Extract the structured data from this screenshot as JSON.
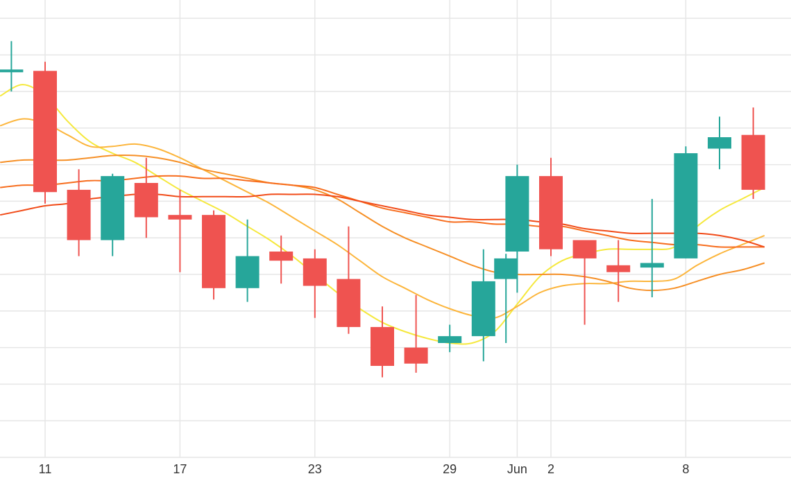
{
  "chart_data": {
    "type": "candlestick",
    "grid": true,
    "legend": "none",
    "x_axis": {
      "unit": "day",
      "tick_labels": [
        {
          "day": 11,
          "label": "11"
        },
        {
          "day": 17,
          "label": "17"
        },
        {
          "day": 23,
          "label": "23"
        },
        {
          "day": 29,
          "label": "29"
        },
        {
          "day": 32,
          "label": "Jun"
        },
        {
          "day": 33.5,
          "label": "2"
        },
        {
          "day": 39.5,
          "label": "8"
        }
      ],
      "range": [
        9,
        44
      ]
    },
    "y_axis": {
      "range": [
        0,
        100
      ],
      "gridlines": [
        0,
        8,
        16,
        24,
        32,
        40,
        48,
        56,
        64,
        72,
        80,
        88,
        96
      ]
    },
    "candles": [
      {
        "day": 9.5,
        "open": 84.2,
        "high": 91.0,
        "low": 80.0,
        "close": 84.8
      },
      {
        "day": 11,
        "open": 84.5,
        "high": 86.5,
        "low": 55.5,
        "close": 58.0
      },
      {
        "day": 12.5,
        "open": 58.5,
        "high": 63.0,
        "low": 44.0,
        "close": 47.5
      },
      {
        "day": 14,
        "open": 47.5,
        "high": 62.0,
        "low": 44.0,
        "close": 61.5
      },
      {
        "day": 15.5,
        "open": 60.0,
        "high": 65.5,
        "low": 48.0,
        "close": 52.5
      },
      {
        "day": 17,
        "open": 53.0,
        "high": 58.5,
        "low": 40.5,
        "close": 52.0
      },
      {
        "day": 18.5,
        "open": 53.0,
        "high": 54.0,
        "low": 34.5,
        "close": 37.0
      },
      {
        "day": 20,
        "open": 37.0,
        "high": 52.0,
        "low": 34.0,
        "close": 44.0
      },
      {
        "day": 21.5,
        "open": 45.0,
        "high": 48.5,
        "low": 38.0,
        "close": 43.0
      },
      {
        "day": 23,
        "open": 43.5,
        "high": 45.5,
        "low": 30.5,
        "close": 37.5
      },
      {
        "day": 24.5,
        "open": 39.0,
        "high": 50.5,
        "low": 27.0,
        "close": 28.5
      },
      {
        "day": 26,
        "open": 28.5,
        "high": 33.0,
        "low": 17.5,
        "close": 20.0
      },
      {
        "day": 27.5,
        "open": 24.0,
        "high": 35.5,
        "low": 18.5,
        "close": 20.5
      },
      {
        "day": 29,
        "open": 25.0,
        "high": 29.0,
        "low": 23.0,
        "close": 26.5
      },
      {
        "day": 30.5,
        "open": 26.5,
        "high": 45.5,
        "low": 21.0,
        "close": 38.5
      },
      {
        "day": 32,
        "open": 39.0,
        "high": 44.5,
        "low": 25.0,
        "close": 43.5
      },
      {
        "day": 32,
        "open": 45.0,
        "high": 64.0,
        "low": 36.0,
        "close": 61.5
      },
      {
        "day": 33.5,
        "open": 61.5,
        "high": 65.5,
        "low": 44.0,
        "close": 45.5
      },
      {
        "day": 35,
        "open": 47.5,
        "high": 47.5,
        "low": 29.0,
        "close": 43.5
      },
      {
        "day": 36.5,
        "open": 42.0,
        "high": 47.5,
        "low": 34.0,
        "close": 40.5
      },
      {
        "day": 38,
        "open": 41.5,
        "high": 56.5,
        "low": 35.0,
        "close": 42.5
      },
      {
        "day": 39.5,
        "open": 43.5,
        "high": 68.0,
        "low": 43.5,
        "close": 66.5
      },
      {
        "day": 41,
        "open": 67.5,
        "high": 74.5,
        "low": 63.0,
        "close": 70.0
      },
      {
        "day": 42.5,
        "open": 70.5,
        "high": 76.5,
        "low": 56.5,
        "close": 58.5
      }
    ],
    "moving_averages": [
      {
        "color": "#f5e83c",
        "points": [
          [
            9,
            79.0
          ],
          [
            10,
            81.5
          ],
          [
            11,
            79.0
          ],
          [
            12,
            73.5
          ],
          [
            13,
            69.0
          ],
          [
            14,
            66.5
          ],
          [
            15,
            64.5
          ],
          [
            16,
            61.5
          ],
          [
            17,
            58.5
          ],
          [
            18,
            56.0
          ],
          [
            19,
            53.5
          ],
          [
            20,
            50.5
          ],
          [
            21,
            47.5
          ],
          [
            22,
            44.0
          ],
          [
            23,
            40.0
          ],
          [
            24,
            36.0
          ],
          [
            25,
            32.5
          ],
          [
            26,
            29.5
          ],
          [
            27,
            27.5
          ],
          [
            28,
            26.0
          ],
          [
            29,
            25.0
          ],
          [
            30,
            25.0
          ],
          [
            31,
            27.5
          ],
          [
            32,
            33.5
          ],
          [
            33,
            39.5
          ],
          [
            34,
            43.0
          ],
          [
            35,
            44.5
          ],
          [
            36,
            45.5
          ],
          [
            37,
            45.5
          ],
          [
            38,
            45.5
          ],
          [
            39,
            46.0
          ],
          [
            40,
            50.5
          ],
          [
            41,
            54.0
          ],
          [
            42,
            56.5
          ],
          [
            43,
            59.0
          ]
        ]
      },
      {
        "color": "#fcb53b",
        "points": [
          [
            9,
            72.5
          ],
          [
            10,
            74.0
          ],
          [
            11,
            73.0
          ],
          [
            12,
            70.5
          ],
          [
            13,
            68.0
          ],
          [
            14,
            68.0
          ],
          [
            15,
            68.5
          ],
          [
            16,
            67.5
          ],
          [
            17,
            65.5
          ],
          [
            18,
            63.0
          ],
          [
            19,
            60.5
          ],
          [
            20,
            58.0
          ],
          [
            21,
            55.5
          ],
          [
            22,
            52.5
          ],
          [
            23,
            49.5
          ],
          [
            24,
            46.5
          ],
          [
            25,
            43.0
          ],
          [
            26,
            39.5
          ],
          [
            27,
            37.0
          ],
          [
            28,
            34.5
          ],
          [
            29,
            32.5
          ],
          [
            30,
            31.0
          ],
          [
            31,
            30.5
          ],
          [
            32,
            33.0
          ],
          [
            33,
            36.0
          ],
          [
            34,
            37.5
          ],
          [
            35,
            38.0
          ],
          [
            36,
            38.0
          ],
          [
            37,
            38.5
          ],
          [
            38,
            38.5
          ],
          [
            39,
            39.0
          ],
          [
            40,
            42.0
          ],
          [
            41,
            44.5
          ],
          [
            42,
            46.5
          ],
          [
            43,
            48.5
          ]
        ]
      },
      {
        "color": "#f68f25",
        "points": [
          [
            9,
            64.5
          ],
          [
            10,
            65.0
          ],
          [
            11,
            65.0
          ],
          [
            12,
            65.0
          ],
          [
            13,
            65.5
          ],
          [
            14,
            66.0
          ],
          [
            15,
            66.0
          ],
          [
            16,
            65.5
          ],
          [
            17,
            64.5
          ],
          [
            18,
            63.0
          ],
          [
            19,
            62.0
          ],
          [
            20,
            61.0
          ],
          [
            21,
            60.0
          ],
          [
            22,
            59.5
          ],
          [
            23,
            58.5
          ],
          [
            24,
            56.5
          ],
          [
            25,
            53.5
          ],
          [
            26,
            50.5
          ],
          [
            27,
            48.0
          ],
          [
            28,
            46.0
          ],
          [
            29,
            44.0
          ],
          [
            30,
            42.0
          ],
          [
            31,
            40.5
          ],
          [
            32,
            40.0
          ],
          [
            33,
            40.0
          ],
          [
            34,
            40.0
          ],
          [
            35,
            39.5
          ],
          [
            36,
            38.5
          ],
          [
            37,
            37.0
          ],
          [
            38,
            36.5
          ],
          [
            39,
            37.0
          ],
          [
            40,
            38.5
          ],
          [
            41,
            40.0
          ],
          [
            42,
            41.0
          ],
          [
            43,
            42.5
          ]
        ]
      },
      {
        "color": "#f76c1c",
        "points": [
          [
            9,
            59.0
          ],
          [
            10,
            59.5
          ],
          [
            11,
            59.5
          ],
          [
            12,
            60.0
          ],
          [
            13,
            60.5
          ],
          [
            14,
            60.5
          ],
          [
            15,
            61.0
          ],
          [
            16,
            61.5
          ],
          [
            17,
            61.5
          ],
          [
            18,
            61.0
          ],
          [
            19,
            61.0
          ],
          [
            20,
            60.5
          ],
          [
            21,
            60.0
          ],
          [
            22,
            59.5
          ],
          [
            23,
            59.0
          ],
          [
            24,
            57.5
          ],
          [
            25,
            56.0
          ],
          [
            26,
            54.5
          ],
          [
            27,
            53.5
          ],
          [
            28,
            52.5
          ],
          [
            29,
            51.5
          ],
          [
            30,
            51.5
          ],
          [
            31,
            51.0
          ],
          [
            32,
            51.0
          ],
          [
            33,
            50.5
          ],
          [
            34,
            50.5
          ],
          [
            35,
            49.5
          ],
          [
            36,
            48.5
          ],
          [
            37,
            47.5
          ],
          [
            38,
            47.0
          ],
          [
            39,
            46.5
          ],
          [
            40,
            46.5
          ],
          [
            41,
            46.0
          ],
          [
            42,
            46.0
          ],
          [
            43,
            46.0
          ]
        ]
      },
      {
        "color": "#f14a17",
        "points": [
          [
            9,
            53.0
          ],
          [
            10,
            54.0
          ],
          [
            11,
            55.0
          ],
          [
            12,
            55.5
          ],
          [
            13,
            56.5
          ],
          [
            14,
            57.0
          ],
          [
            15,
            57.5
          ],
          [
            16,
            57.5
          ],
          [
            17,
            57.0
          ],
          [
            18,
            57.0
          ],
          [
            19,
            57.0
          ],
          [
            20,
            57.0
          ],
          [
            21,
            57.5
          ],
          [
            22,
            57.5
          ],
          [
            23,
            57.5
          ],
          [
            24,
            57.0
          ],
          [
            25,
            56.0
          ],
          [
            26,
            55.0
          ],
          [
            27,
            54.0
          ],
          [
            28,
            53.0
          ],
          [
            29,
            52.5
          ],
          [
            30,
            52.0
          ],
          [
            31,
            52.0
          ],
          [
            32,
            52.0
          ],
          [
            33,
            51.5
          ],
          [
            34,
            51.0
          ],
          [
            35,
            50.0
          ],
          [
            36,
            49.5
          ],
          [
            37,
            49.0
          ],
          [
            38,
            49.0
          ],
          [
            39,
            49.0
          ],
          [
            40,
            49.0
          ],
          [
            41,
            48.5
          ],
          [
            42,
            47.5
          ],
          [
            43,
            46.0
          ]
        ]
      }
    ],
    "colors": {
      "up": "#26a69a",
      "down": "#ef5350",
      "grid": "#e6e6e6",
      "axis_text": "#333333"
    }
  }
}
